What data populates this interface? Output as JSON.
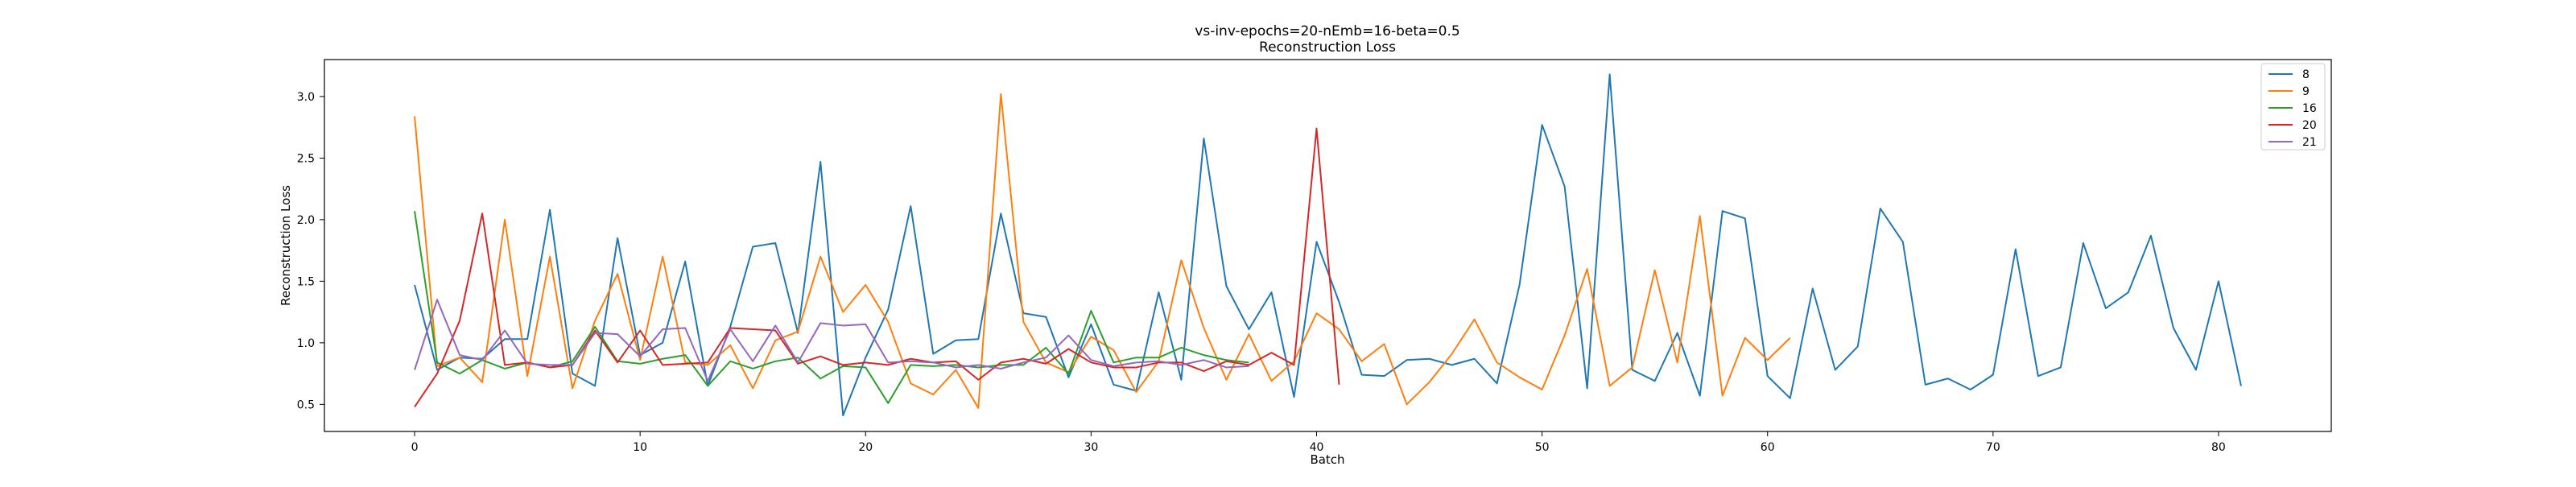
{
  "chart_data": {
    "type": "line",
    "title": "vs-inv-epochs=20-nEmb=16-beta=0.5",
    "subtitle": "Reconstruction Loss",
    "xlabel": "Batch",
    "ylabel": "Reconstruction Loss",
    "xlim": [
      -4,
      85
    ],
    "ylim": [
      0.28,
      3.3
    ],
    "xticks": [
      0,
      10,
      20,
      30,
      40,
      50,
      60,
      70,
      80
    ],
    "yticks": [
      0.5,
      1.0,
      1.5,
      2.0,
      2.5,
      3.0
    ],
    "ytick_labels": [
      "0.5",
      "1.0",
      "1.5",
      "2.0",
      "2.5",
      "3.0"
    ],
    "grid": false,
    "legend_position": "top-right",
    "series": [
      {
        "name": "8",
        "color": "#1f77b4",
        "values": [
          1.47,
          0.78,
          0.88,
          0.87,
          1.03,
          1.03,
          2.08,
          0.75,
          0.65,
          1.85,
          0.9,
          1.0,
          1.66,
          0.65,
          1.13,
          1.78,
          1.81,
          1.08,
          2.47,
          0.41,
          0.88,
          1.27,
          2.11,
          0.91,
          1.02,
          1.03,
          2.05,
          1.24,
          1.21,
          0.72,
          1.15,
          0.66,
          0.61,
          1.41,
          0.7,
          2.66,
          1.46,
          1.11,
          1.41,
          0.56,
          1.82,
          1.33,
          0.74,
          0.73,
          0.86,
          0.87,
          0.82,
          0.87,
          0.67,
          1.47,
          2.77,
          2.27,
          0.63,
          3.18,
          0.78,
          0.69,
          1.08,
          0.57,
          2.07,
          2.01,
          0.73,
          0.55,
          1.44,
          0.78,
          0.97,
          2.09,
          1.82,
          0.66,
          0.71,
          0.62,
          0.74,
          1.76,
          0.73,
          0.8,
          1.81,
          1.28,
          1.41,
          1.87,
          1.12,
          0.78,
          1.5,
          0.65
        ]
      },
      {
        "name": "9",
        "color": "#ff7f0e",
        "values": [
          2.84,
          0.81,
          0.88,
          0.68,
          2.0,
          0.73,
          1.7,
          0.63,
          1.18,
          1.56,
          0.86,
          1.7,
          0.84,
          0.82,
          0.98,
          0.63,
          1.02,
          1.09,
          1.7,
          1.25,
          1.47,
          1.17,
          0.67,
          0.58,
          0.78,
          0.47,
          3.02,
          1.17,
          0.84,
          0.76,
          1.05,
          0.94,
          0.6,
          0.85,
          1.67,
          1.12,
          0.7,
          1.07,
          0.69,
          0.85,
          1.24,
          1.11,
          0.85,
          0.99,
          0.5,
          0.68,
          0.91,
          1.19,
          0.84,
          0.72,
          0.62,
          1.06,
          1.6,
          0.65,
          0.8,
          1.59,
          0.84,
          2.03,
          0.57,
          1.04,
          0.86,
          1.04
        ]
      },
      {
        "name": "16",
        "color": "#2ca02c",
        "values": [
          2.07,
          0.84,
          0.75,
          0.86,
          0.79,
          0.84,
          0.8,
          0.85,
          1.13,
          0.85,
          0.83,
          0.87,
          0.9,
          0.65,
          0.85,
          0.79,
          0.85,
          0.88,
          0.71,
          0.81,
          0.8,
          0.51,
          0.82,
          0.81,
          0.82,
          0.8,
          0.82,
          0.82,
          0.96,
          0.75,
          1.26,
          0.84,
          0.88,
          0.88,
          0.96,
          0.9,
          0.86,
          0.84
        ]
      },
      {
        "name": "20",
        "color": "#d62728",
        "values": [
          0.48,
          0.75,
          1.18,
          2.05,
          0.82,
          0.84,
          0.8,
          0.82,
          1.1,
          0.84,
          1.1,
          0.82,
          0.83,
          0.84,
          1.12,
          1.11,
          1.1,
          0.83,
          0.89,
          0.82,
          0.84,
          0.82,
          0.87,
          0.84,
          0.85,
          0.7,
          0.84,
          0.87,
          0.83,
          0.95,
          0.84,
          0.8,
          0.8,
          0.84,
          0.84,
          0.77,
          0.85,
          0.82,
          0.92,
          0.82,
          2.74,
          0.66
        ]
      },
      {
        "name": "21",
        "color": "#9467bd",
        "values": [
          0.78,
          1.35,
          0.9,
          0.86,
          1.1,
          0.83,
          0.82,
          0.82,
          1.08,
          1.07,
          0.89,
          1.11,
          1.12,
          0.69,
          1.11,
          0.85,
          1.14,
          0.84,
          1.16,
          1.14,
          1.15,
          0.84,
          0.85,
          0.84,
          0.8,
          0.82,
          0.79,
          0.84,
          0.88,
          1.06,
          0.86,
          0.81,
          0.84,
          0.85,
          0.82,
          0.86,
          0.8,
          0.81
        ]
      }
    ]
  }
}
